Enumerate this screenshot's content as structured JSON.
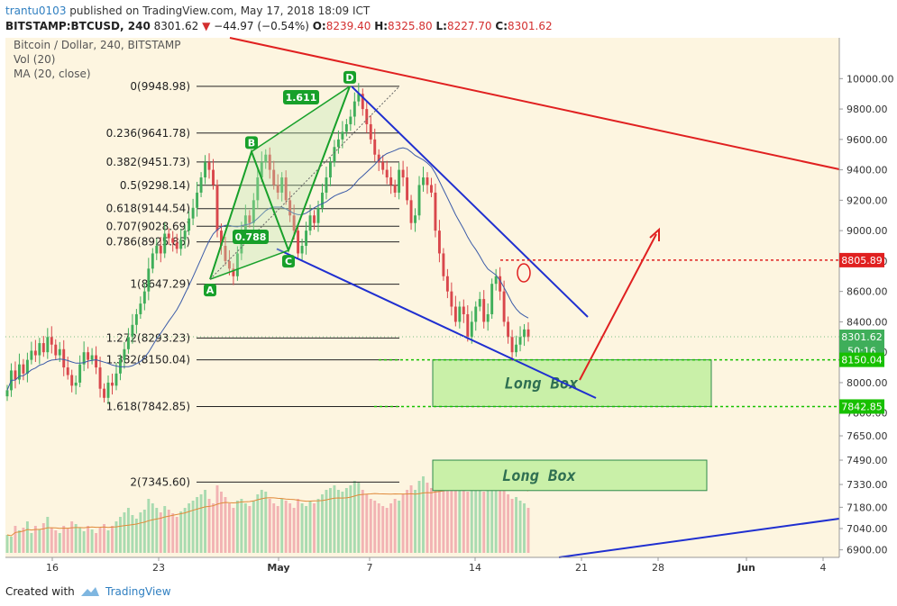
{
  "header": {
    "author": "trantu0103",
    "published_text": "published on TradingView.com, May 17, 2018 18:09 ICT",
    "symbol": "BITSTAMP:BTCUSD, 240",
    "last": "8301.62",
    "change": "−44.97 (−0.54%)",
    "o_label": "O:",
    "o": "8239.40",
    "h_label": "H:",
    "h": "8325.80",
    "l_label": "L:",
    "l": "8227.70",
    "c_label": "C:",
    "c": "8301.62"
  },
  "legend": {
    "title": "Bitcoin / Dollar, 240, BITSTAMP",
    "vol": "Vol (20)",
    "ma": "MA (20, close)"
  },
  "footer": {
    "created_with": "Created with",
    "brand": "TradingView"
  },
  "colors": {
    "background": "#fdf5e0",
    "up": "#3fae5a",
    "down": "#d9474c",
    "blue_line": "#1f2fd0",
    "red_line": "#e02020",
    "box_fill": "#c9f0a8",
    "fib_green": "#17a02a"
  },
  "chart_data": {
    "type": "candlestick",
    "ylim": [
      6880,
      10150
    ],
    "y_ticks": [
      "10000.00",
      "9800.00",
      "9600.00",
      "9400.00",
      "9200.00",
      "9000.00",
      "8800.00",
      "8600.00",
      "8400.00",
      "8200.00",
      "8000.00",
      "7800.00",
      "7650.00",
      "7490.00",
      "7330.00",
      "7180.00",
      "7040.00",
      "6900.00"
    ],
    "x_ticks": [
      "16",
      "23",
      "May",
      "7",
      "14",
      "21",
      "28",
      "Jun",
      "4"
    ],
    "price_labels": [
      {
        "text": "8805.89",
        "value": 8805.89,
        "color": "#e02020"
      },
      {
        "text": "8301.62",
        "value": 8301.62,
        "color": "#3fae5a"
      },
      {
        "text": "50:16",
        "value": 8210,
        "color": "#3fae5a"
      },
      {
        "text": "8150.04",
        "value": 8150.04,
        "color": "#17c000"
      },
      {
        "text": "7842.85",
        "value": 7842.85,
        "color": "#17c000"
      }
    ],
    "fib_levels": [
      {
        "label": "0(9948.98)",
        "value": 9948.98
      },
      {
        "label": "0.236(9641.78)",
        "value": 9641.78
      },
      {
        "label": "0.382(9451.73)",
        "value": 9451.73
      },
      {
        "label": "0.5(9298.14)",
        "value": 9298.14
      },
      {
        "label": "0.618(9144.54)",
        "value": 9144.54
      },
      {
        "label": "0.707(9028.69)",
        "value": 9028.69
      },
      {
        "label": "0.786(8925.85)",
        "value": 8925.85
      },
      {
        "label": "1(8647.29)",
        "value": 8647.29
      },
      {
        "label": "1.272(8293.23)",
        "value": 8293.23
      },
      {
        "label": "1.382(8150.04)",
        "value": 8150.04
      },
      {
        "label": "1.618(7842.85)",
        "value": 7842.85
      },
      {
        "label": "2(7345.60)",
        "value": 7345.6
      }
    ],
    "harmonic_points": [
      {
        "name": "A",
        "value": 8680
      },
      {
        "name": "B",
        "value": 9520
      },
      {
        "name": "C",
        "value": 8870
      },
      {
        "name": "D",
        "value": 9948.98
      }
    ],
    "harmonic_ratios": [
      "1.611",
      "0.788"
    ],
    "boxes": [
      {
        "label": "Long Box",
        "top": 8150.04,
        "bottom": 7842.85
      },
      {
        "label": "Long Box",
        "top": 7490,
        "bottom": 7290
      }
    ],
    "closes": [
      7950,
      8080,
      8020,
      8120,
      8060,
      8150,
      8210,
      8180,
      8260,
      8200,
      8300,
      8250,
      8180,
      8220,
      8100,
      8050,
      7980,
      8000,
      8120,
      8200,
      8150,
      8180,
      8100,
      7960,
      7900,
      8000,
      7980,
      8060,
      8150,
      8220,
      8300,
      8380,
      8450,
      8520,
      8600,
      8750,
      8850,
      8900,
      8850,
      8980,
      8950,
      8920,
      8880,
      8940,
      9000,
      9080,
      9150,
      9250,
      9350,
      9450,
      9400,
      9300,
      9000,
      8900,
      8800,
      8750,
      8700,
      8850,
      9000,
      9100,
      9050,
      9200,
      9350,
      9450,
      9500,
      9400,
      9300,
      9250,
      9350,
      9200,
      9100,
      9000,
      8850,
      8900,
      9000,
      9100,
      9050,
      9150,
      9250,
      9350,
      9450,
      9550,
      9600,
      9650,
      9700,
      9750,
      9850,
      9900,
      9800,
      9700,
      9600,
      9500,
      9450,
      9400,
      9350,
      9300,
      9250,
      9400,
      9350,
      9200,
      9050,
      9100,
      9300,
      9350,
      9300,
      9250,
      9000,
      8850,
      8700,
      8600,
      8500,
      8400,
      8500,
      8450,
      8300,
      8400,
      8500,
      8550,
      8400,
      8450,
      8650,
      8700,
      8600,
      8400,
      8300,
      8200,
      8250,
      8300,
      8350,
      8300
    ],
    "volumes": [
      20,
      18,
      30,
      25,
      28,
      35,
      22,
      30,
      26,
      33,
      40,
      28,
      25,
      22,
      30,
      27,
      35,
      32,
      28,
      24,
      30,
      26,
      22,
      28,
      32,
      25,
      30,
      35,
      40,
      45,
      50,
      42,
      38,
      45,
      48,
      60,
      55,
      50,
      45,
      52,
      48,
      44,
      40,
      46,
      50,
      55,
      58,
      62,
      65,
      70,
      60,
      55,
      75,
      68,
      62,
      55,
      50,
      58,
      60,
      55,
      52,
      58,
      65,
      70,
      68,
      60,
      55,
      52,
      60,
      58,
      55,
      50,
      60,
      55,
      52,
      58,
      55,
      60,
      65,
      70,
      72,
      75,
      70,
      68,
      72,
      75,
      80,
      78,
      70,
      65,
      60,
      58,
      55,
      52,
      50,
      55,
      60,
      58,
      65,
      70,
      75,
      70,
      80,
      85,
      78,
      72,
      95,
      90,
      85,
      80,
      78,
      75,
      70,
      72,
      68,
      70,
      75,
      72,
      68,
      70,
      85,
      80,
      75,
      70,
      65,
      60,
      62,
      58,
      55,
      50
    ]
  }
}
